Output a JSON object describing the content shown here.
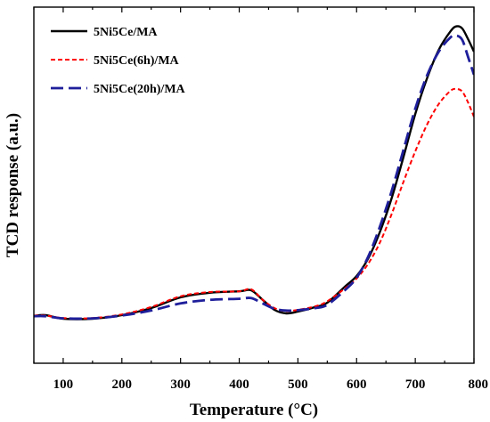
{
  "chart_data": {
    "type": "line",
    "title": "",
    "xlabel": "Temperature (°C)",
    "ylabel": "TCD response (a.u.)",
    "xlim": [
      50,
      800
    ],
    "ylim": [
      0,
      100
    ],
    "y_ticks_labeled": false,
    "xticks": [
      100,
      200,
      300,
      400,
      500,
      600,
      700,
      800
    ],
    "grid": false,
    "legend_position": "top-left",
    "series": [
      {
        "name": "5Ni5Ce/MA",
        "color": "#000000",
        "dash": "solid",
        "points": [
          [
            50,
            13.3
          ],
          [
            70,
            13.5
          ],
          [
            100,
            12.5
          ],
          [
            150,
            12.5
          ],
          [
            200,
            13.5
          ],
          [
            250,
            15.5
          ],
          [
            300,
            18.5
          ],
          [
            350,
            19.8
          ],
          [
            400,
            20.2
          ],
          [
            420,
            20.5
          ],
          [
            440,
            17.8
          ],
          [
            460,
            15
          ],
          [
            480,
            14
          ],
          [
            500,
            14.5
          ],
          [
            530,
            15.8
          ],
          [
            550,
            17
          ],
          [
            580,
            21.5
          ],
          [
            600,
            24.5
          ],
          [
            620,
            29.5
          ],
          [
            640,
            37
          ],
          [
            660,
            46.5
          ],
          [
            680,
            58
          ],
          [
            700,
            70
          ],
          [
            720,
            80
          ],
          [
            740,
            88
          ],
          [
            760,
            93.2
          ],
          [
            770,
            94.6
          ],
          [
            780,
            94
          ],
          [
            790,
            91
          ],
          [
            800,
            87.5
          ]
        ]
      },
      {
        "name": "5Ni5Ce(6h)/MA",
        "color": "#ff0000",
        "dash": "short-dash",
        "points": [
          [
            50,
            13.4
          ],
          [
            70,
            13.4
          ],
          [
            100,
            12.7
          ],
          [
            150,
            12.7
          ],
          [
            200,
            13.7
          ],
          [
            250,
            15.8
          ],
          [
            300,
            18.8
          ],
          [
            350,
            20
          ],
          [
            400,
            20.2
          ],
          [
            420,
            20.8
          ],
          [
            440,
            17.8
          ],
          [
            460,
            15.5
          ],
          [
            480,
            14.6
          ],
          [
            500,
            15
          ],
          [
            530,
            16
          ],
          [
            550,
            17.4
          ],
          [
            580,
            21
          ],
          [
            600,
            23.8
          ],
          [
            620,
            28
          ],
          [
            640,
            34
          ],
          [
            660,
            42
          ],
          [
            680,
            51
          ],
          [
            700,
            59.5
          ],
          [
            720,
            67
          ],
          [
            740,
            72.8
          ],
          [
            760,
            76.5
          ],
          [
            770,
            77
          ],
          [
            780,
            76.3
          ],
          [
            790,
            73.2
          ],
          [
            800,
            69.2
          ]
        ]
      },
      {
        "name": "5Ni5Ce(20h)/MA",
        "color": "#1f1f9c",
        "dash": "long-dash",
        "points": [
          [
            50,
            13.2
          ],
          [
            70,
            13.2
          ],
          [
            100,
            12.6
          ],
          [
            150,
            12.6
          ],
          [
            200,
            13.4
          ],
          [
            250,
            14.8
          ],
          [
            300,
            16.8
          ],
          [
            350,
            17.8
          ],
          [
            400,
            18.1
          ],
          [
            420,
            18.3
          ],
          [
            440,
            16.8
          ],
          [
            460,
            15.3
          ],
          [
            480,
            14.8
          ],
          [
            500,
            14.9
          ],
          [
            530,
            15.5
          ],
          [
            550,
            16.4
          ],
          [
            580,
            20.5
          ],
          [
            600,
            24
          ],
          [
            620,
            30
          ],
          [
            640,
            38.5
          ],
          [
            660,
            48.5
          ],
          [
            680,
            60
          ],
          [
            700,
            71.5
          ],
          [
            720,
            80.8
          ],
          [
            740,
            87.5
          ],
          [
            760,
            91.5
          ],
          [
            770,
            92
          ],
          [
            780,
            90.8
          ],
          [
            790,
            86
          ],
          [
            800,
            81
          ]
        ]
      }
    ]
  }
}
